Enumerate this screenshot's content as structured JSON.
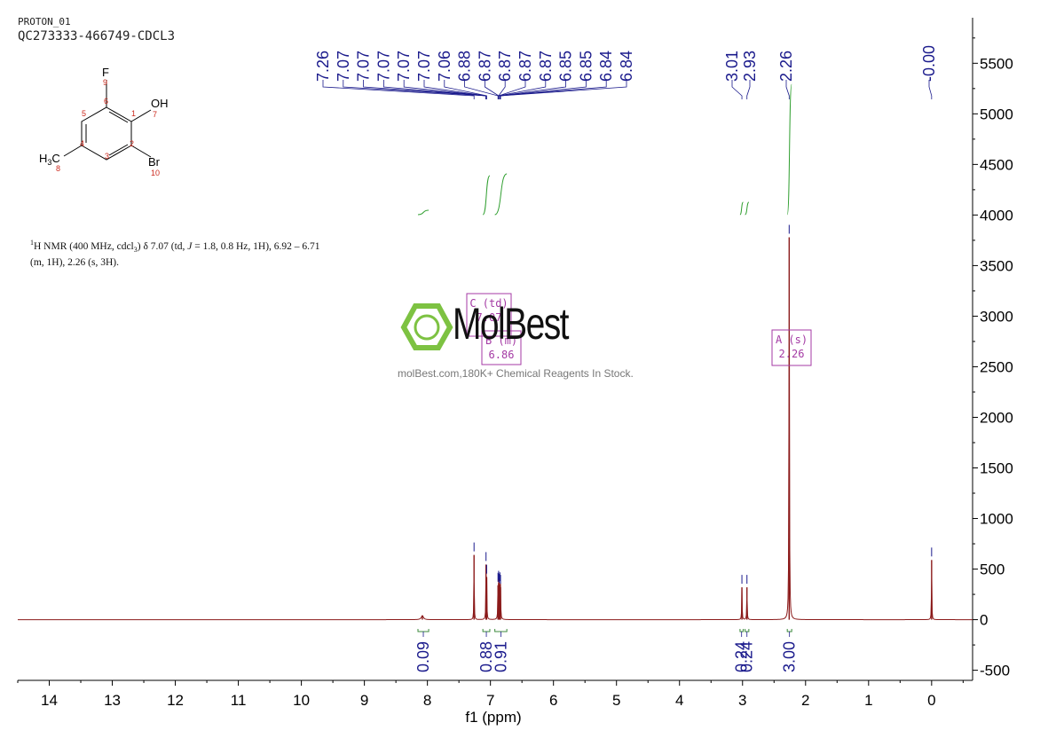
{
  "header": {
    "line1": "PROTON_01",
    "line2": "QC273333-466749-CDCL3"
  },
  "structure": {
    "atoms": {
      "F": "F",
      "OH": "OH",
      "Br": "Br",
      "H3C": "H3C"
    },
    "numbers": [
      "1",
      "2",
      "3",
      "4",
      "5",
      "6",
      "7",
      "8",
      "9",
      "10"
    ]
  },
  "description": {
    "nucleus_sup": "1",
    "text_a": "H NMR (400 MHz, cdcl",
    "sub_3": "3",
    "text_b": ") δ 7.07 (td, ",
    "j_italic": "J",
    "text_c": " = 1.8, 0.8 Hz, 1H), 6.92 – 6.71",
    "line2": "(m, 1H), 2.26 (s, 3H)."
  },
  "watermark": {
    "name": "MolBest",
    "tagline": "molBest.com,180K+ Chemical Reagents In Stock."
  },
  "colors": {
    "spectrum": "#8B1A1A",
    "peak_labels": "#1a1a8c",
    "integral": "#2e9e2e",
    "multiplet_box": "#a43aa4",
    "logo_green": "#7dc242"
  },
  "chart_data": {
    "type": "line",
    "xlabel": "f1 (ppm)",
    "xlim": [
      14.5,
      -0.65
    ],
    "x_reversed": true,
    "ylim": [
      -600,
      5950
    ],
    "x_ticks": [
      14,
      13,
      12,
      11,
      10,
      9,
      8,
      7,
      6,
      5,
      4,
      3,
      2,
      1,
      0
    ],
    "y_ticks": [
      -500,
      0,
      500,
      1000,
      1500,
      2000,
      2500,
      3000,
      3500,
      4000,
      4500,
      5000,
      5500
    ],
    "peaks": [
      {
        "ppm": 8.08,
        "height": 40,
        "width": 0.02
      },
      {
        "ppm": 7.26,
        "height": 640,
        "width": 0.0035
      },
      {
        "ppm": 7.07,
        "height": 545,
        "width": 0.0035
      },
      {
        "ppm": 7.06,
        "height": 420,
        "width": 0.0035
      },
      {
        "ppm": 6.88,
        "height": 340,
        "width": 0.0035
      },
      {
        "ppm": 6.87,
        "height": 360,
        "width": 0.0035
      },
      {
        "ppm": 6.86,
        "height": 330,
        "width": 0.0035
      },
      {
        "ppm": 6.85,
        "height": 345,
        "width": 0.0035
      },
      {
        "ppm": 6.84,
        "height": 320,
        "width": 0.0035
      },
      {
        "ppm": 3.01,
        "height": 320,
        "width": 0.004
      },
      {
        "ppm": 2.93,
        "height": 320,
        "width": 0.004
      },
      {
        "ppm": 2.26,
        "height": 3780,
        "width": 0.0045
      },
      {
        "ppm": 0.0,
        "height": 590,
        "width": 0.0035
      }
    ],
    "peak_labels_group1": [
      "7.26",
      "7.07",
      "7.07",
      "7.07",
      "7.07",
      "7.07",
      "7.06",
      "6.88",
      "6.87",
      "6.87",
      "6.87",
      "6.87",
      "6.85",
      "6.85",
      "6.84",
      "6.84"
    ],
    "peak_labels_group2": [
      "3.01",
      "2.93"
    ],
    "peak_labels_group3": [
      "2.26"
    ],
    "peak_labels_group4": [
      "-0.00"
    ],
    "integrals": [
      {
        "from": 8.15,
        "to": 7.98,
        "value": "0.09"
      },
      {
        "from": 7.12,
        "to": 7.01,
        "value": "0.88"
      },
      {
        "from": 6.93,
        "to": 6.74,
        "value": "0.91"
      },
      {
        "from": 3.04,
        "to": 2.99,
        "value": "0.24"
      },
      {
        "from": 2.96,
        "to": 2.9,
        "value": "0.24"
      },
      {
        "from": 2.29,
        "to": 2.22,
        "value": "3.00"
      }
    ],
    "multiplets": [
      {
        "label": "C (td)",
        "shift": "7.07"
      },
      {
        "label": "B (m)",
        "shift": "6.86"
      },
      {
        "label": "A (s)",
        "shift": "2.26"
      }
    ]
  }
}
